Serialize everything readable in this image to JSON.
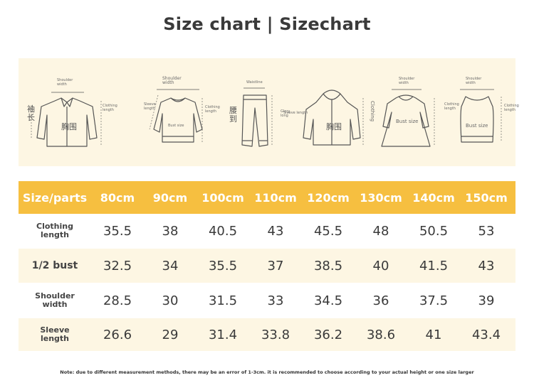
{
  "title": "Size chart | Sizechart",
  "diagrams": {
    "shirt": {
      "shoulder": "Shoulder\nwidth",
      "cn_side": "袖\n长",
      "chest": "胸围",
      "length": "Clothing\nlength"
    },
    "sweater": {
      "shoulder": "Shoulder\nwidth",
      "sleeve": "Sleeve\nlength",
      "bust": "Bust size",
      "length": "Clothing\nlength"
    },
    "pants": {
      "waist": "Waistline",
      "cn_side": "腰\n到",
      "length": "Glory\nlong"
    },
    "hoodie": {
      "sleeve": "Sleeve length",
      "chest": "胸围",
      "length": "Clothing"
    },
    "dress": {
      "shoulder": "Shoulder\nwidth",
      "bust": "Bust size",
      "length": "Clothing\nlength"
    },
    "vest": {
      "shoulder": "Shoulder\nwidth",
      "bust": "Bust size",
      "length": "Clothing\nlength"
    }
  },
  "table": {
    "header_label": "Size/parts",
    "sizes": [
      "80cm",
      "90cm",
      "100cm",
      "110cm",
      "120cm",
      "130cm",
      "140cm",
      "150cm"
    ],
    "rows": [
      {
        "label": "Clothing\nlength",
        "values": [
          "35.5",
          "38",
          "40.5",
          "43",
          "45.5",
          "48",
          "50.5",
          "53"
        ]
      },
      {
        "label": "1/2 bust",
        "values": [
          "32.5",
          "34",
          "35.5",
          "37",
          "38.5",
          "40",
          "41.5",
          "43"
        ]
      },
      {
        "label": "Shoulder\nwidth",
        "values": [
          "28.5",
          "30",
          "31.5",
          "33",
          "34.5",
          "36",
          "37.5",
          "39"
        ]
      },
      {
        "label": "Sleeve\nlength",
        "values": [
          "26.6",
          "29",
          "31.4",
          "33.8",
          "36.2",
          "38.6",
          "41",
          "43.4"
        ]
      }
    ]
  },
  "note": "Note: due to different measurement methods, there may be an error of 1-3cm. it is recommended to choose according to your actual height or one size larger",
  "colors": {
    "header": "#f6bf40",
    "panel": "#fdf6e3",
    "text": "#3a3a3a"
  }
}
